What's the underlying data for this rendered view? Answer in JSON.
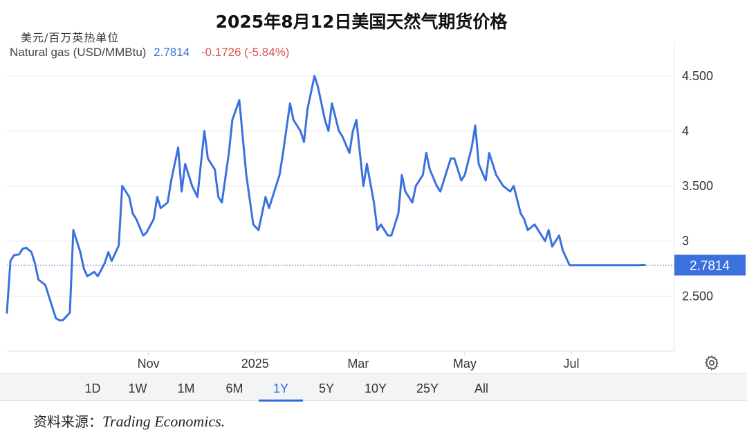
{
  "title": "2025年8月12日美国天然气期货价格",
  "unit_label": "美元/百万英热单位",
  "legend": {
    "series_name": "Natural gas (USD/MMBtu)",
    "price": "2.7814",
    "change": "-0.1726 (-5.84%)"
  },
  "colors": {
    "line": "#3a71dd",
    "negative": "#e0524f",
    "accent": "#2f6be0"
  },
  "time_ranges": [
    "1D",
    "1W",
    "1M",
    "6M",
    "1Y",
    "5Y",
    "10Y",
    "25Y",
    "All"
  ],
  "active_range": "1Y",
  "source": {
    "prefix": "资料来源：",
    "name": "Trading Economics."
  },
  "settings_icon": "gear-icon",
  "chart_data": {
    "type": "line",
    "series": [
      {
        "name": "Natural gas (USD/MMBtu)",
        "x": [
          "2024-08-12",
          "2024-08-14",
          "2024-08-16",
          "2024-08-19",
          "2024-08-21",
          "2024-08-23",
          "2024-08-26",
          "2024-08-28",
          "2024-08-30",
          "2024-09-03",
          "2024-09-05",
          "2024-09-09",
          "2024-09-11",
          "2024-09-13",
          "2024-09-17",
          "2024-09-19",
          "2024-09-23",
          "2024-09-25",
          "2024-09-27",
          "2024-10-01",
          "2024-10-03",
          "2024-10-07",
          "2024-10-09",
          "2024-10-11",
          "2024-10-15",
          "2024-10-17",
          "2024-10-21",
          "2024-10-23",
          "2024-10-25",
          "2024-10-29",
          "2024-10-31",
          "2024-11-04",
          "2024-11-06",
          "2024-11-08",
          "2024-11-12",
          "2024-11-14",
          "2024-11-18",
          "2024-11-20",
          "2024-11-22",
          "2024-11-26",
          "2024-11-29",
          "2024-12-03",
          "2024-12-05",
          "2024-12-09",
          "2024-12-11",
          "2024-12-13",
          "2024-12-17",
          "2024-12-19",
          "2024-12-23",
          "2024-12-27",
          "2024-12-31",
          "2025-01-03",
          "2025-01-07",
          "2025-01-09",
          "2025-01-13",
          "2025-01-15",
          "2025-01-17",
          "2025-01-21",
          "2025-01-23",
          "2025-01-27",
          "2025-01-29",
          "2025-01-31",
          "2025-02-04",
          "2025-02-06",
          "2025-02-10",
          "2025-02-12",
          "2025-02-14",
          "2025-02-18",
          "2025-02-20",
          "2025-02-24",
          "2025-02-26",
          "2025-02-28",
          "2025-03-04",
          "2025-03-06",
          "2025-03-10",
          "2025-03-12",
          "2025-03-14",
          "2025-03-18",
          "2025-03-20",
          "2025-03-24",
          "2025-03-26",
          "2025-03-28",
          "2025-04-01",
          "2025-04-03",
          "2025-04-07",
          "2025-04-09",
          "2025-04-11",
          "2025-04-15",
          "2025-04-17",
          "2025-04-21",
          "2025-04-23",
          "2025-04-25",
          "2025-04-29",
          "2025-05-01",
          "2025-05-05",
          "2025-05-07",
          "2025-05-09",
          "2025-05-13",
          "2025-05-15",
          "2025-05-19",
          "2025-05-21",
          "2025-05-23",
          "2025-05-27",
          "2025-05-29",
          "2025-06-02",
          "2025-06-04",
          "2025-06-06",
          "2025-06-10",
          "2025-06-12",
          "2025-06-16",
          "2025-06-18",
          "2025-06-20",
          "2025-06-24",
          "2025-06-26",
          "2025-06-30",
          "2025-07-02",
          "2025-07-07",
          "2025-07-09",
          "2025-07-11",
          "2025-07-15",
          "2025-07-17",
          "2025-07-21",
          "2025-07-23",
          "2025-07-25",
          "2025-07-29",
          "2025-07-31",
          "2025-08-04",
          "2025-08-06",
          "2025-08-08",
          "2025-08-12"
        ],
        "values": [
          2.35,
          2.82,
          2.87,
          2.88,
          2.93,
          2.94,
          2.9,
          2.8,
          2.65,
          2.6,
          2.5,
          2.3,
          2.28,
          2.28,
          2.35,
          3.1,
          2.9,
          2.75,
          2.68,
          2.72,
          2.68,
          2.8,
          2.9,
          2.82,
          2.96,
          3.5,
          3.4,
          3.25,
          3.2,
          3.05,
          3.08,
          3.2,
          3.4,
          3.3,
          3.35,
          3.55,
          3.85,
          3.45,
          3.7,
          3.5,
          3.4,
          4.0,
          3.75,
          3.65,
          3.4,
          3.35,
          3.8,
          4.1,
          4.28,
          3.6,
          3.15,
          3.1,
          3.4,
          3.3,
          3.5,
          3.6,
          3.8,
          4.25,
          4.1,
          4.0,
          3.9,
          4.2,
          4.5,
          4.4,
          4.1,
          4.0,
          4.25,
          4.0,
          3.95,
          3.8,
          4.0,
          4.1,
          3.5,
          3.7,
          3.35,
          3.1,
          3.15,
          3.05,
          3.05,
          3.25,
          3.6,
          3.45,
          3.35,
          3.5,
          3.6,
          3.8,
          3.65,
          3.5,
          3.45,
          3.65,
          3.75,
          3.75,
          3.55,
          3.6,
          3.85,
          4.05,
          3.7,
          3.55,
          3.8,
          3.6,
          3.55,
          3.5,
          3.45,
          3.5,
          3.25,
          3.2,
          3.1,
          3.15,
          3.1,
          3.0,
          3.1,
          2.95,
          3.05,
          2.92,
          2.78,
          2.78,
          2.78,
          2.78,
          2.78,
          2.78,
          2.78,
          2.78,
          2.78,
          2.78,
          2.78,
          2.78,
          2.78,
          2.78,
          2.78,
          2.7814
        ]
      }
    ],
    "last_value": "2.7814",
    "y_ticks": [
      "2.500",
      "3",
      "3.500",
      "4",
      "4.500"
    ],
    "y_tick_values": [
      2.5,
      3,
      3.5,
      4,
      4.5
    ],
    "x_ticks": [
      "Nov",
      "2025",
      "Mar",
      "May",
      "Jul"
    ],
    "x_tick_values": [
      "2024-11-01",
      "2025-01-01",
      "2025-03-01",
      "2025-05-01",
      "2025-07-01"
    ],
    "ylim": [
      2.0,
      4.75
    ],
    "xlim": [
      "2024-08-12",
      "2025-08-25"
    ],
    "grid": true
  }
}
